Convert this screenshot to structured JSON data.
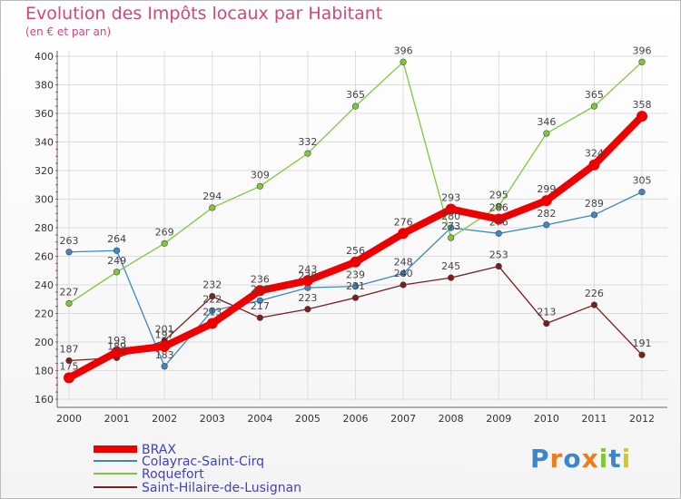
{
  "chart_data": {
    "type": "line",
    "title": "Evolution des Impôts locaux par Habitant",
    "subtitle": "(en € et par an)",
    "xlabel": "",
    "ylabel": "",
    "ylim": [
      160,
      400
    ],
    "y_ticks": [
      160,
      180,
      200,
      220,
      240,
      260,
      280,
      300,
      320,
      340,
      360,
      380,
      400
    ],
    "x": [
      "2000",
      "2001",
      "2002",
      "2003",
      "2004",
      "2005",
      "2006",
      "2007",
      "2008",
      "2009",
      "2010",
      "2011",
      "2012"
    ],
    "grid": true,
    "legend_position": "bottom-left",
    "series": [
      {
        "name": "BRAX",
        "color": "#ee0000",
        "emphasis": true,
        "values": [
          175,
          193,
          197,
          213,
          236,
          243,
          256,
          276,
          293,
          286,
          299,
          324,
          358
        ]
      },
      {
        "name": "Colayrac-Saint-Cirq",
        "color": "#3a87c9",
        "values": [
          263,
          264,
          183,
          222,
          229,
          238,
          239,
          248,
          280,
          276,
          282,
          289,
          305
        ]
      },
      {
        "name": "Roquefort",
        "color": "#7fc939",
        "values": [
          227,
          249,
          269,
          294,
          309,
          332,
          365,
          396,
          273,
          295,
          346,
          365,
          396
        ]
      },
      {
        "name": "Saint-Hilaire-de-Lusignan",
        "color": "#7a1e1e",
        "values": [
          187,
          189,
          201,
          232,
          217,
          223,
          231,
          240,
          245,
          253,
          213,
          226,
          191
        ]
      }
    ]
  },
  "logo": {
    "text": "Proxiti"
  }
}
